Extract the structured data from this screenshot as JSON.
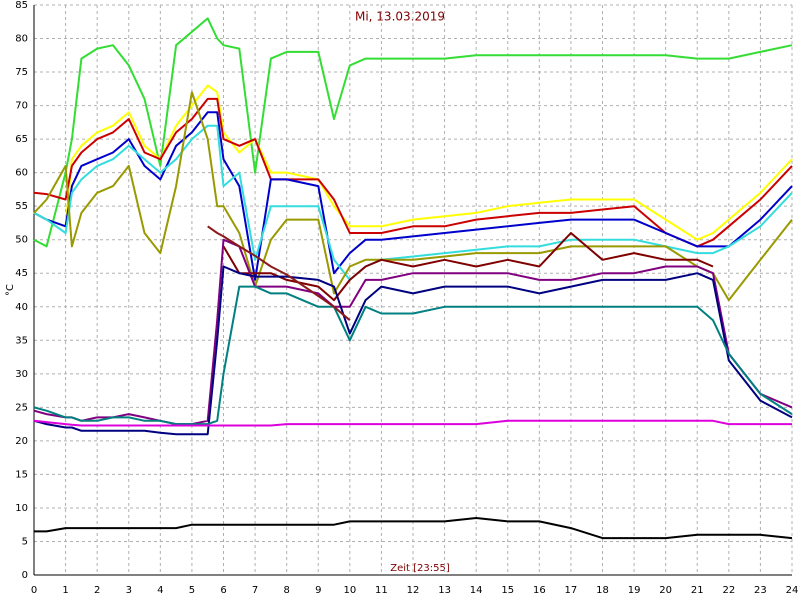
{
  "chart_data": {
    "type": "line",
    "title": "Mi, 13.03.2019",
    "x_label": "Zeit [23:55]",
    "y_label": "°C",
    "grid": true,
    "xlim": [
      0,
      24
    ],
    "ylim": [
      0,
      85
    ],
    "xticks": [
      0,
      1,
      2,
      3,
      4,
      5,
      6,
      7,
      8,
      9,
      10,
      11,
      12,
      13,
      14,
      15,
      16,
      17,
      18,
      19,
      20,
      21,
      22,
      23,
      24
    ],
    "yticks": [
      0,
      5,
      10,
      15,
      20,
      25,
      30,
      35,
      40,
      45,
      50,
      55,
      60,
      65,
      70,
      75,
      80,
      85
    ],
    "x": [
      0,
      0.4,
      1,
      1.2,
      1.5,
      2,
      2.5,
      3,
      3.5,
      4,
      4.5,
      5,
      5.5,
      5.8,
      6,
      6.5,
      7,
      7.5,
      8,
      9,
      9.5,
      10,
      10.5,
      11,
      12,
      13,
      14,
      15,
      16,
      17,
      18,
      19,
      20,
      21,
      21.5,
      22,
      23,
      24
    ],
    "series": [
      {
        "color": "#33dd33",
        "values": [
          50,
          49,
          60,
          65,
          77,
          78.5,
          79,
          76,
          71,
          61,
          79,
          81,
          83,
          80,
          79,
          78.5,
          60,
          77,
          78,
          78,
          68,
          76,
          77,
          77,
          77,
          77,
          77.5,
          77.5,
          77.5,
          77.5,
          77.5,
          77.5,
          77.5,
          77,
          77,
          77,
          78,
          79
        ]
      },
      {
        "color": "#ffff00",
        "values": [
          54,
          53,
          52,
          62,
          64,
          66,
          67,
          69,
          64,
          62,
          67,
          70,
          73,
          72,
          66,
          63,
          65,
          60,
          60,
          59,
          55,
          52,
          52,
          52,
          53,
          53.5,
          54,
          55,
          55.5,
          56,
          56,
          56,
          53,
          50,
          51,
          53,
          57,
          62
        ]
      },
      {
        "color": "#cc0000",
        "values": [
          57,
          56.8,
          56,
          61,
          63,
          65,
          66,
          68,
          63,
          62,
          66,
          68,
          71,
          71,
          65,
          64,
          65,
          59,
          59,
          59,
          56,
          51,
          51,
          51,
          52,
          52,
          53,
          53.5,
          54,
          54,
          54.5,
          55,
          51,
          49,
          50,
          52,
          56,
          61
        ]
      },
      {
        "color": "#0000cc",
        "values": [
          54,
          53,
          52,
          58,
          61,
          62,
          63,
          65,
          61,
          59,
          64,
          66,
          69,
          69,
          62,
          58,
          44,
          59,
          59,
          58,
          45,
          48,
          50,
          50,
          50.5,
          51,
          51.5,
          52,
          52.5,
          53,
          53,
          53,
          51,
          49,
          49,
          49,
          53,
          58
        ]
      },
      {
        "color": "#33dddd",
        "values": [
          54,
          53,
          51,
          57,
          59,
          61,
          62,
          64,
          62,
          60,
          62,
          65,
          67,
          67,
          58,
          60,
          47,
          55,
          55,
          55,
          47,
          44,
          46,
          47,
          47.5,
          48,
          48.5,
          49,
          49,
          50,
          50,
          50,
          49,
          48,
          48,
          49,
          52,
          57
        ]
      },
      {
        "color": "#999900",
        "values": [
          54,
          56,
          61,
          49,
          54,
          57,
          58,
          61,
          51,
          48,
          58,
          72,
          65,
          55,
          55,
          51,
          43,
          50,
          53,
          53,
          42,
          46,
          47,
          47,
          47,
          47.5,
          48,
          48,
          48,
          49,
          49,
          49,
          49,
          46,
          45,
          41,
          47,
          53
        ]
      },
      {
        "color": "#800000",
        "values": [
          null,
          null,
          null,
          null,
          null,
          null,
          null,
          null,
          null,
          null,
          null,
          null,
          null,
          null,
          49,
          45,
          45,
          45,
          44,
          43,
          41,
          44,
          46,
          47,
          46,
          47,
          46,
          47,
          46,
          51,
          47,
          48,
          47,
          47,
          46,
          null,
          null,
          null
        ]
      },
      {
        "color": "#800080",
        "values": [
          24.5,
          24,
          23.5,
          23.5,
          23,
          23.5,
          23.5,
          24,
          23.5,
          23,
          22.5,
          22.5,
          23,
          38,
          50,
          49,
          43,
          43,
          43,
          42,
          40,
          40,
          44,
          44,
          45,
          45,
          45,
          45,
          44,
          44,
          45,
          45,
          46,
          46,
          45,
          33,
          27,
          25
        ]
      },
      {
        "color": "#000080",
        "values": [
          23,
          22.5,
          22,
          22,
          21.5,
          21.5,
          21.5,
          21.5,
          21.5,
          21.2,
          21,
          21,
          21,
          35,
          46,
          45,
          44.5,
          44.5,
          44.5,
          44,
          43,
          36,
          41,
          43,
          42,
          43,
          43,
          43,
          42,
          43,
          44,
          44,
          44,
          45,
          44,
          32,
          26,
          23.5
        ]
      },
      {
        "color": "#008080",
        "values": [
          25,
          24.5,
          23.5,
          23.5,
          23,
          23,
          23.5,
          23.5,
          23,
          23,
          22.5,
          22.5,
          22.5,
          23,
          30,
          43,
          43,
          42,
          42,
          40,
          40,
          35,
          40,
          39,
          39,
          40,
          40,
          40,
          40,
          40,
          40,
          40,
          40,
          40,
          38,
          33,
          27,
          24
        ]
      },
      {
        "color": "#dd00dd",
        "values": [
          23,
          22.8,
          22.5,
          22.4,
          22.3,
          22.3,
          22.3,
          22.3,
          22.3,
          22.3,
          22.3,
          22.3,
          22.3,
          22.3,
          22.3,
          22.3,
          22.3,
          22.3,
          22.5,
          22.5,
          22.5,
          22.5,
          22.5,
          22.5,
          22.5,
          22.5,
          22.5,
          23,
          23,
          23,
          23,
          23,
          23,
          23,
          23,
          22.5,
          22.5,
          22.5
        ]
      },
      {
        "color": "#000000",
        "values": [
          6.5,
          6.5,
          7,
          7,
          7,
          7,
          7,
          7,
          7,
          7,
          7,
          7.5,
          7.5,
          7.5,
          7.5,
          7.5,
          7.5,
          7.5,
          7.5,
          7.5,
          7.5,
          8,
          8,
          8,
          8,
          8,
          8.5,
          8,
          8,
          7,
          5.5,
          5.5,
          5.5,
          6,
          6,
          6,
          6,
          5.5
        ]
      },
      {
        "color": "#8b1a1a",
        "values": [
          null,
          null,
          null,
          null,
          null,
          null,
          null,
          null,
          null,
          null,
          null,
          null,
          52,
          51,
          50.5,
          49,
          47.6,
          46,
          44.8,
          41.6,
          40,
          38,
          null,
          null,
          null,
          null,
          null,
          null,
          null,
          null,
          null,
          null,
          null,
          null,
          null,
          null,
          null,
          null
        ]
      }
    ]
  }
}
